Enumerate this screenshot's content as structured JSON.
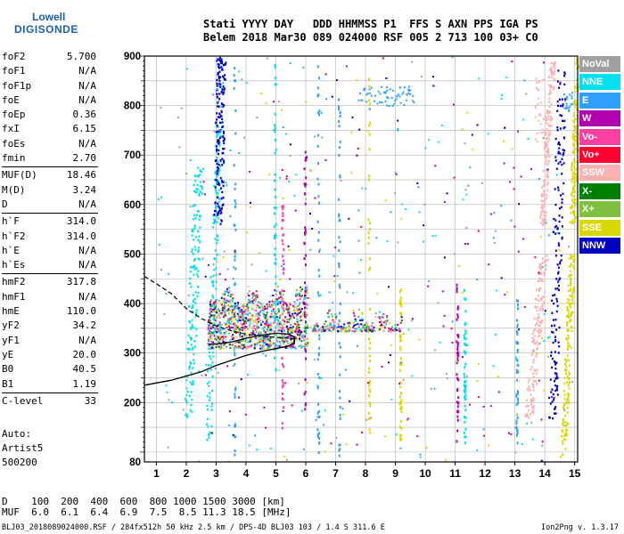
{
  "logo": {
    "line1": "Lowell",
    "line2": "DIGISONDE"
  },
  "header": {
    "line1": "Stati YYYY DAY   DDD HHMMSS P1  FFS S AXN PPS IGA PS",
    "line2": "Belem 2018 Mar30 089 024000 RSF 005 2 713 100 03+ C0"
  },
  "params": {
    "g1": [
      [
        "foF2",
        "5.700"
      ],
      [
        "foF1",
        "N/A"
      ],
      [
        "foF1p",
        "N/A"
      ],
      [
        "foE",
        "N/A"
      ],
      [
        "foEp",
        "0.36"
      ],
      [
        "fxI",
        "6.15"
      ],
      [
        "foEs",
        "N/A"
      ],
      [
        "fmin",
        "2.70"
      ]
    ],
    "g2": [
      [
        "MUF(D)",
        "18.46"
      ],
      [
        "M(D)",
        "3.24"
      ],
      [
        "D",
        "N/A"
      ]
    ],
    "g3": [
      [
        "h`F",
        "314.0"
      ],
      [
        "h`F2",
        "314.0"
      ],
      [
        "h`E",
        "N/A"
      ],
      [
        "h`Es",
        "N/A"
      ]
    ],
    "g4": [
      [
        "hmF2",
        "317.8"
      ],
      [
        "hmF1",
        "N/A"
      ],
      [
        "hmE",
        "110.0"
      ],
      [
        "yF2",
        "34.2"
      ],
      [
        "yF1",
        "N/A"
      ],
      [
        "yE",
        "20.0"
      ],
      [
        "B0",
        "40.5"
      ],
      [
        "B1",
        "1.19"
      ]
    ],
    "g5": [
      [
        "C-level",
        "33"
      ]
    ]
  },
  "auto": {
    "l1": "Auto:",
    "l2": "Artist5",
    "l3": "500200"
  },
  "legend": [
    {
      "label": "NoVal",
      "color": "#a0a0a0"
    },
    {
      "label": "NNE",
      "color": "#00e0f0"
    },
    {
      "label": "E",
      "color": "#30a0ff"
    },
    {
      "label": "W",
      "color": "#b000b0"
    },
    {
      "label": "Vo-",
      "color": "#ff40a0"
    },
    {
      "label": "Vo+",
      "color": "#ff0030"
    },
    {
      "label": "SSW",
      "color": "#ffb0b0"
    },
    {
      "label": "X-",
      "color": "#008000"
    },
    {
      "label": "X+",
      "color": "#80c040"
    },
    {
      "label": "SSE",
      "color": "#d8d800"
    },
    {
      "label": "NNW",
      "color": "#0000c0"
    }
  ],
  "chart_data": {
    "type": "scatter",
    "title": "",
    "xlabel": "",
    "ylabel": "",
    "xlim": [
      0.6,
      15.1
    ],
    "ylim": [
      80,
      900
    ],
    "x_ticks": [
      1,
      2,
      3,
      4,
      5,
      6,
      7,
      8,
      9,
      10,
      11,
      12,
      13,
      14,
      15
    ],
    "y_ticks": [
      80,
      200,
      300,
      400,
      500,
      600,
      700,
      800,
      900
    ],
    "grid": true,
    "profile_solid": [
      [
        0.6,
        235
      ],
      [
        1.5,
        245
      ],
      [
        2.5,
        262
      ],
      [
        3.0,
        275
      ],
      [
        3.5,
        285
      ],
      [
        4.0,
        295
      ],
      [
        4.5,
        303
      ],
      [
        5.0,
        309
      ],
      [
        5.4,
        314
      ],
      [
        5.62,
        320
      ],
      [
        5.62,
        332
      ],
      [
        5.45,
        338
      ],
      [
        5.0,
        340
      ],
      [
        4.5,
        336
      ],
      [
        4.0,
        330
      ],
      [
        3.5,
        322
      ],
      [
        3.0,
        318
      ],
      [
        2.75,
        317.8
      ]
    ],
    "profile_dashed": [
      [
        0.6,
        455
      ],
      [
        1.0,
        440
      ],
      [
        1.5,
        420
      ],
      [
        2.0,
        390
      ],
      [
        2.5,
        370
      ],
      [
        3.0,
        355
      ],
      [
        3.5,
        345
      ],
      [
        4.0,
        338
      ],
      [
        4.5,
        334
      ],
      [
        5.0,
        332
      ],
      [
        5.4,
        330
      ],
      [
        5.7,
        328
      ]
    ],
    "traces": [
      {
        "mode": "band",
        "color": "#00e0f0",
        "x0": 2.6,
        "x1": 2.8,
        "y0": 120,
        "y1": 900,
        "shift": 0.45
      },
      {
        "mode": "band",
        "color": "#00e0f0",
        "x0": 1.9,
        "x1": 2.2,
        "y0": 170,
        "y1": 680,
        "shift": 0.35
      },
      {
        "mode": "band",
        "color": "#ffb0b0",
        "x0": 13.3,
        "x1": 13.6,
        "y0": 170,
        "y1": 500,
        "shift": 0.5
      },
      {
        "mode": "band",
        "color": "#ffb0b0",
        "x0": 13.8,
        "x1": 14.0,
        "y0": 560,
        "y1": 900,
        "shift": 0.35
      },
      {
        "mode": "band",
        "color": "#d8d800",
        "x0": 14.5,
        "x1": 14.7,
        "y0": 90,
        "y1": 500,
        "shift": 0.3
      },
      {
        "mode": "band",
        "color": "#d8d800",
        "x0": 14.8,
        "x1": 15.0,
        "y0": 560,
        "y1": 900,
        "shift": 0.2
      },
      {
        "mode": "band",
        "color": "#0000c0",
        "x0": 14.1,
        "x1": 14.4,
        "y0": 170,
        "y1": 880,
        "shift": 0.3
      },
      {
        "mode": "band",
        "color": "#0000c0",
        "x0": 2.9,
        "x1": 3.2,
        "y0": 560,
        "y1": 900,
        "shift": 0.1
      },
      {
        "mode": "vert",
        "color": "#b000b0",
        "x": 5.95,
        "y0": 180,
        "y1": 720
      },
      {
        "mode": "vert",
        "color": "#30a0ff",
        "x": 7.1,
        "y0": 90,
        "y1": 820
      },
      {
        "mode": "vert",
        "color": "#b000b0",
        "x": 11.05,
        "y0": 120,
        "y1": 440
      },
      {
        "mode": "vert",
        "color": "#30a0ff",
        "x": 3.6,
        "y0": 80,
        "y1": 900
      },
      {
        "mode": "vert",
        "color": "#00e0f0",
        "x": 4.95,
        "y0": 150,
        "y1": 900
      },
      {
        "mode": "vert",
        "color": "#30a0ff",
        "x": 6.4,
        "y0": 100,
        "y1": 900
      },
      {
        "mode": "vert",
        "color": "#d8d800",
        "x": 8.1,
        "y0": 100,
        "y1": 880
      },
      {
        "mode": "vert",
        "color": "#00e0f0",
        "x": 11.3,
        "y0": 110,
        "y1": 430
      },
      {
        "mode": "vert",
        "color": "#30a0ff",
        "x": 13.05,
        "y0": 120,
        "y1": 420
      },
      {
        "mode": "vert",
        "color": "#ff40a0",
        "x": 5.2,
        "y0": 150,
        "y1": 600
      },
      {
        "mode": "vert",
        "color": "#d8d800",
        "x": 9.15,
        "y0": 110,
        "y1": 440
      },
      {
        "mode": "blob",
        "color": "#30a0ff",
        "x0": 7.7,
        "x1": 9.6,
        "y0": 800,
        "y1": 840,
        "n": 60
      },
      {
        "mode": "blob",
        "color": "#ffb0b0",
        "x0": 13.65,
        "x1": 14.0,
        "y0": 720,
        "y1": 860,
        "n": 30
      },
      {
        "mode": "blob",
        "color": "#30a0ff",
        "x0": 14.6,
        "x1": 14.9,
        "y0": 790,
        "y1": 830,
        "n": 20
      },
      {
        "mode": "scatter",
        "color": "#a0a0a0",
        "x0": 1.0,
        "x1": 15.0,
        "y0": 80,
        "y1": 900,
        "n": 80
      },
      {
        "mode": "scatter",
        "color": "#00e0f0",
        "x0": 1.0,
        "x1": 14.5,
        "y0": 80,
        "y1": 900,
        "n": 90
      },
      {
        "mode": "scatter",
        "color": "#b000b0",
        "x0": 2.5,
        "x1": 14.5,
        "y0": 80,
        "y1": 900,
        "n": 70
      },
      {
        "mode": "scatter",
        "color": "#d8d800",
        "x0": 3.0,
        "x1": 14.5,
        "y0": 80,
        "y1": 900,
        "n": 60
      },
      {
        "mode": "scatter",
        "color": "#30a0ff",
        "x0": 2.5,
        "x1": 14.5,
        "y0": 80,
        "y1": 900,
        "n": 60
      },
      {
        "mode": "scatter",
        "color": "#0000c0",
        "x0": 2.5,
        "x1": 14.5,
        "y0": 80,
        "y1": 900,
        "n": 40
      },
      {
        "mode": "scatter",
        "color": "#ff0030",
        "x0": 2.5,
        "x1": 14.5,
        "y0": 80,
        "y1": 900,
        "n": 25
      },
      {
        "mode": "cluster",
        "x0": 2.7,
        "x1": 6.05,
        "y0": 310,
        "y1": 440,
        "n": 1100
      },
      {
        "mode": "cluster",
        "x0": 6.2,
        "x1": 9.2,
        "y0": 345,
        "y1": 395,
        "n": 260
      }
    ]
  },
  "bottom": {
    "line1": "D    100  200  400  600  800 1000 1500 3000 [km]",
    "line2": "MUF  6.0  6.1  6.4  6.9  7.5  8.5 11.3 18.5 [MHz]"
  },
  "footer": {
    "left": "BLJ03_2018089024000.RSF / 284fx512h 50 kHz 2.5 km / DPS-4D BLJ03 103 / 1.4 S 311.6 E",
    "right": "Ion2Png v. 1.3.17"
  }
}
